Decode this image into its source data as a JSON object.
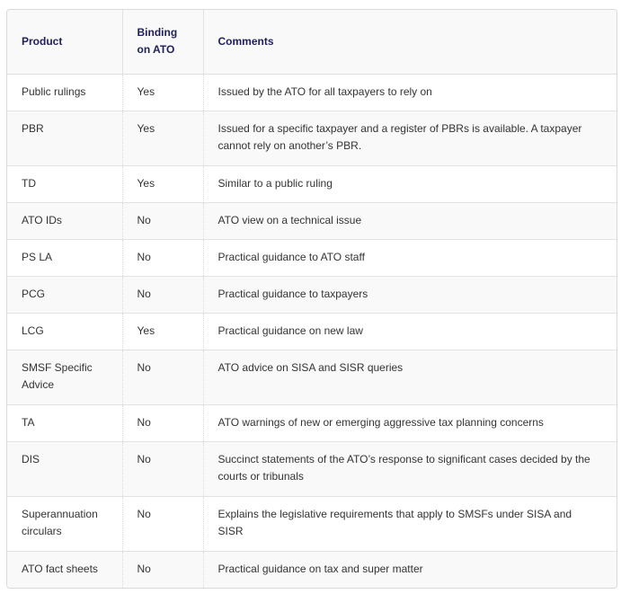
{
  "table": {
    "headers": [
      "Product",
      "Binding on ATO",
      "Comments"
    ],
    "rows": [
      {
        "product": "Public rulings",
        "binding": "Yes",
        "comments": "Issued by the ATO for all taxpayers to rely on"
      },
      {
        "product": "PBR",
        "binding": "Yes",
        "comments": "Issued for a specific taxpayer and a register of PBRs is available. A taxpayer cannot rely on another’s PBR."
      },
      {
        "product": "TD",
        "binding": "Yes",
        "comments": "Similar to a public ruling"
      },
      {
        "product": "ATO IDs",
        "binding": "No",
        "comments": "ATO view on a technical issue"
      },
      {
        "product": "PS LA",
        "binding": "No",
        "comments": "Practical guidance to ATO staff"
      },
      {
        "product": "PCG",
        "binding": "No",
        "comments": "Practical guidance to taxpayers"
      },
      {
        "product": "LCG",
        "binding": "Yes",
        "comments": "Practical guidance on new law"
      },
      {
        "product": "SMSF Specific Advice",
        "binding": "No",
        "comments": "ATO advice on SISA and SISR queries"
      },
      {
        "product": "TA",
        "binding": "No",
        "comments": "ATO warnings of new or emerging aggressive tax planning concerns"
      },
      {
        "product": "DIS",
        "binding": "No",
        "comments": "Succinct statements of the ATO’s response to significant cases decided by the courts or tribunals"
      },
      {
        "product": "Superannuation circulars",
        "binding": "No",
        "comments": "Explains the legislative requirements that apply to SMSFs under SISA and SISR"
      },
      {
        "product": "ATO fact sheets",
        "binding": "No",
        "comments": "Practical guidance on tax and super matter"
      }
    ]
  }
}
